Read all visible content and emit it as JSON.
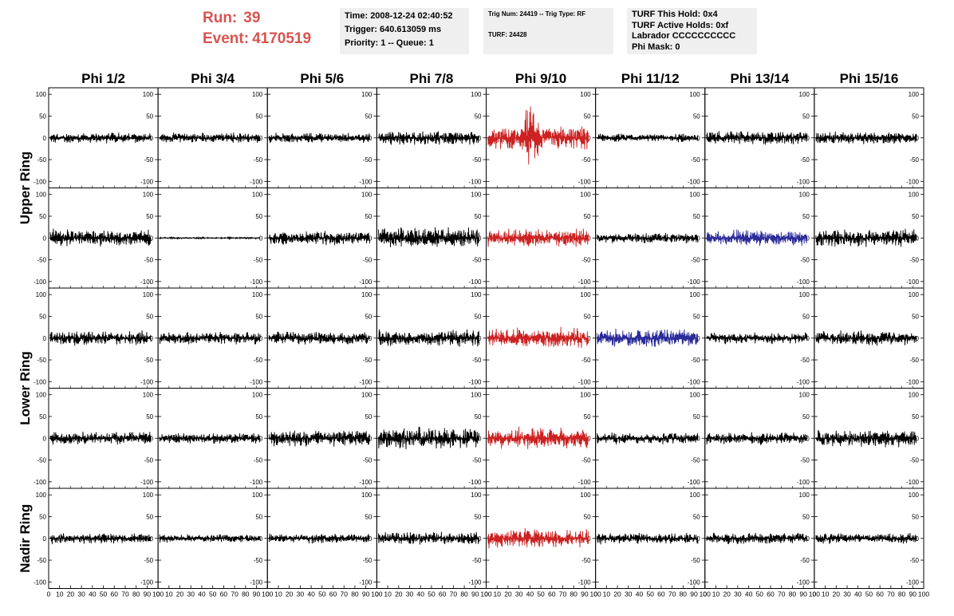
{
  "header": {
    "run_label": "Run:",
    "run_value": "39",
    "event_label": "Event:",
    "event_value": "4170519",
    "time": "Time: 2008-12-24 02:40:52",
    "trigger": "Trigger: 640.613059 ms",
    "priority": "Priority: 1 -- Queue: 1",
    "trig_num": "Trig Num: 24419 -- Trig Type: RF",
    "turf": "TURF: 24428",
    "turf_this_hold": "TURF This Hold: 0x4",
    "turf_active_holds": "TURF Active Holds: 0xf",
    "labrador": "Labrador CCCCCCCCCC",
    "phi_mask": "Phi Mask: 0"
  },
  "colors": {
    "header_red": "#d9534f",
    "normal": "#000000",
    "triggered": "#cc2222",
    "highlight": "#2b2b99"
  },
  "chart_data": {
    "type": "line",
    "columns": [
      "Phi 1/2",
      "Phi 3/4",
      "Phi 5/6",
      "Phi 7/8",
      "Phi 9/10",
      "Phi 11/12",
      "Phi 13/14",
      "Phi 15/16"
    ],
    "ring_labels": [
      {
        "label": "Upper Ring",
        "rows": [
          0,
          1
        ]
      },
      {
        "label": "Lower Ring",
        "rows": [
          2,
          3
        ]
      },
      {
        "label": "Nadir Ring",
        "rows": [
          4
        ]
      }
    ],
    "xlim": [
      0,
      100
    ],
    "ylim": [
      -115,
      115
    ],
    "yticks": [
      100,
      50,
      0,
      -50,
      -100
    ],
    "ytick_labels": [
      "100",
      "50",
      "0",
      "-50",
      "-100"
    ],
    "xtick_labels": [
      "0",
      "10",
      "20",
      "30",
      "40",
      "50",
      "60",
      "70",
      "80",
      "90",
      "100"
    ],
    "rows": [
      [
        {
          "color": "black",
          "amp": 14
        },
        {
          "color": "black",
          "amp": 13
        },
        {
          "color": "black",
          "amp": 13
        },
        {
          "color": "black",
          "amp": 18
        },
        {
          "color": "red",
          "amp": 30,
          "peak": 95,
          "peak_pos": 0.42
        },
        {
          "color": "black",
          "amp": 11
        },
        {
          "color": "black",
          "amp": 18
        },
        {
          "color": "black",
          "amp": 16
        }
      ],
      [
        {
          "color": "black",
          "amp": 22
        },
        {
          "color": "black",
          "amp": 2
        },
        {
          "color": "black",
          "amp": 18
        },
        {
          "color": "black",
          "amp": 26
        },
        {
          "color": "red",
          "amp": 24
        },
        {
          "color": "black",
          "amp": 14
        },
        {
          "color": "blue",
          "amp": 20
        },
        {
          "color": "black",
          "amp": 22
        }
      ],
      [
        {
          "color": "black",
          "amp": 18
        },
        {
          "color": "black",
          "amp": 16
        },
        {
          "color": "black",
          "amp": 16
        },
        {
          "color": "black",
          "amp": 22
        },
        {
          "color": "red",
          "amp": 26
        },
        {
          "color": "blue",
          "amp": 24
        },
        {
          "color": "black",
          "amp": 15
        },
        {
          "color": "black",
          "amp": 18
        }
      ],
      [
        {
          "color": "black",
          "amp": 16
        },
        {
          "color": "black",
          "amp": 14
        },
        {
          "color": "black",
          "amp": 20
        },
        {
          "color": "black",
          "amp": 28
        },
        {
          "color": "red",
          "amp": 28
        },
        {
          "color": "black",
          "amp": 14
        },
        {
          "color": "black",
          "amp": 16
        },
        {
          "color": "black",
          "amp": 22
        }
      ],
      [
        {
          "color": "black",
          "amp": 14
        },
        {
          "color": "black",
          "amp": 11
        },
        {
          "color": "black",
          "amp": 12
        },
        {
          "color": "black",
          "amp": 16
        },
        {
          "color": "red",
          "amp": 24
        },
        {
          "color": "black",
          "amp": 14
        },
        {
          "color": "black",
          "amp": 14
        },
        {
          "color": "black",
          "amp": 14
        }
      ]
    ]
  }
}
